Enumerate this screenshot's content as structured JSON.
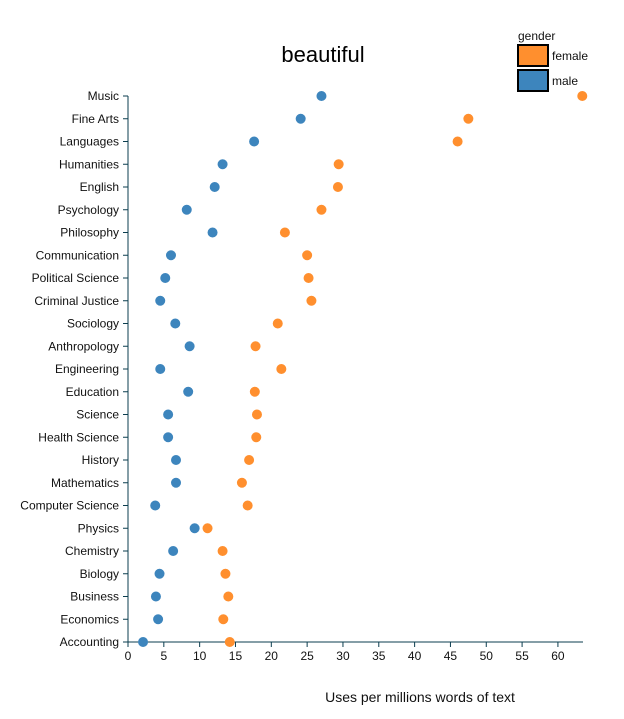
{
  "chart_data": {
    "type": "scatter",
    "title": "beautiful",
    "xlabel": "Uses per millions words of text",
    "ylabel": "",
    "xlim": [
      0,
      63.5
    ],
    "xticks": [
      0,
      5,
      10,
      15,
      20,
      25,
      30,
      35,
      40,
      45,
      50,
      55,
      60
    ],
    "categories": [
      "Music",
      "Fine Arts",
      "Languages",
      "Humanities",
      "English",
      "Psychology",
      "Philosophy",
      "Communication",
      "Political Science",
      "Criminal Justice",
      "Sociology",
      "Anthropology",
      "Engineering",
      "Education",
      "Science",
      "Health Science",
      "History",
      "Mathematics",
      "Computer Science",
      "Physics",
      "Chemistry",
      "Biology",
      "Business",
      "Economics",
      "Accounting"
    ],
    "legend": {
      "title": "gender",
      "position": "top-right"
    },
    "series": [
      {
        "name": "female",
        "color": "#ff8f2e",
        "values": [
          63.4,
          47.5,
          46.0,
          29.4,
          29.3,
          27.0,
          21.9,
          25.0,
          25.2,
          25.6,
          20.9,
          17.8,
          21.4,
          17.7,
          18.0,
          17.9,
          16.9,
          15.9,
          16.7,
          11.1,
          13.2,
          13.6,
          14.0,
          13.3,
          14.2
        ]
      },
      {
        "name": "male",
        "color": "#3d85bd",
        "values": [
          27.0,
          24.1,
          17.6,
          13.2,
          12.1,
          8.2,
          11.8,
          6.0,
          5.2,
          4.5,
          6.6,
          8.6,
          4.5,
          8.4,
          5.6,
          5.6,
          6.7,
          6.7,
          3.8,
          9.3,
          6.3,
          4.4,
          3.9,
          4.2,
          2.1
        ]
      }
    ]
  }
}
